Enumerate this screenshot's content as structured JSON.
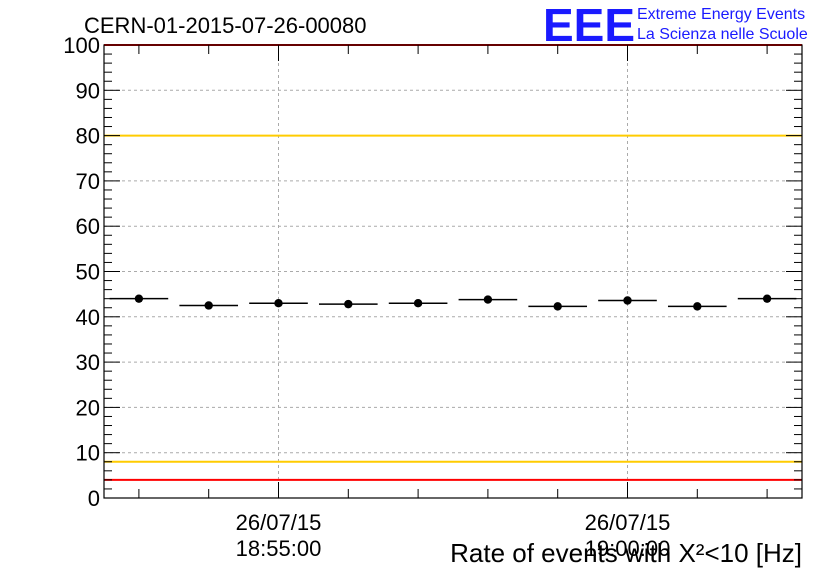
{
  "header": {
    "run_id": "CERN-01-2015-07-26-00080",
    "logo_text": "EEE",
    "logo_line1": "Extreme Energy Events",
    "logo_line2": "La Scienza nelle Scuole",
    "logo_color": "#1a1aff"
  },
  "chart_data": {
    "type": "scatter",
    "title": "CERN-01-2015-07-26-00080",
    "xlabel": "Rate of events with X²<10 [Hz]",
    "ylabel": "",
    "ylim": [
      0,
      100
    ],
    "yticks": [
      0,
      10,
      20,
      30,
      40,
      50,
      60,
      70,
      80,
      90,
      100
    ],
    "grid": true,
    "x_tick_labels": [
      {
        "date": "26/07/15",
        "time": "18:55:00"
      },
      {
        "date": "26/07/15",
        "time": "19:00:00"
      }
    ],
    "x_bin_index_range": [
      0,
      10
    ],
    "x_tick_bin_index": [
      2.5,
      7.5
    ],
    "series": [
      {
        "values": [
          44.0,
          42.5,
          43.0,
          42.8,
          43.0,
          43.8,
          42.3,
          43.6,
          42.3,
          44.0
        ],
        "color": "#000000"
      }
    ],
    "reference_lines": [
      {
        "value": 100,
        "color": "#ff0000"
      },
      {
        "value": 80,
        "color": "#ffcc00"
      },
      {
        "value": 8,
        "color": "#ffcc00"
      },
      {
        "value": 4,
        "color": "#ff0000"
      }
    ]
  }
}
